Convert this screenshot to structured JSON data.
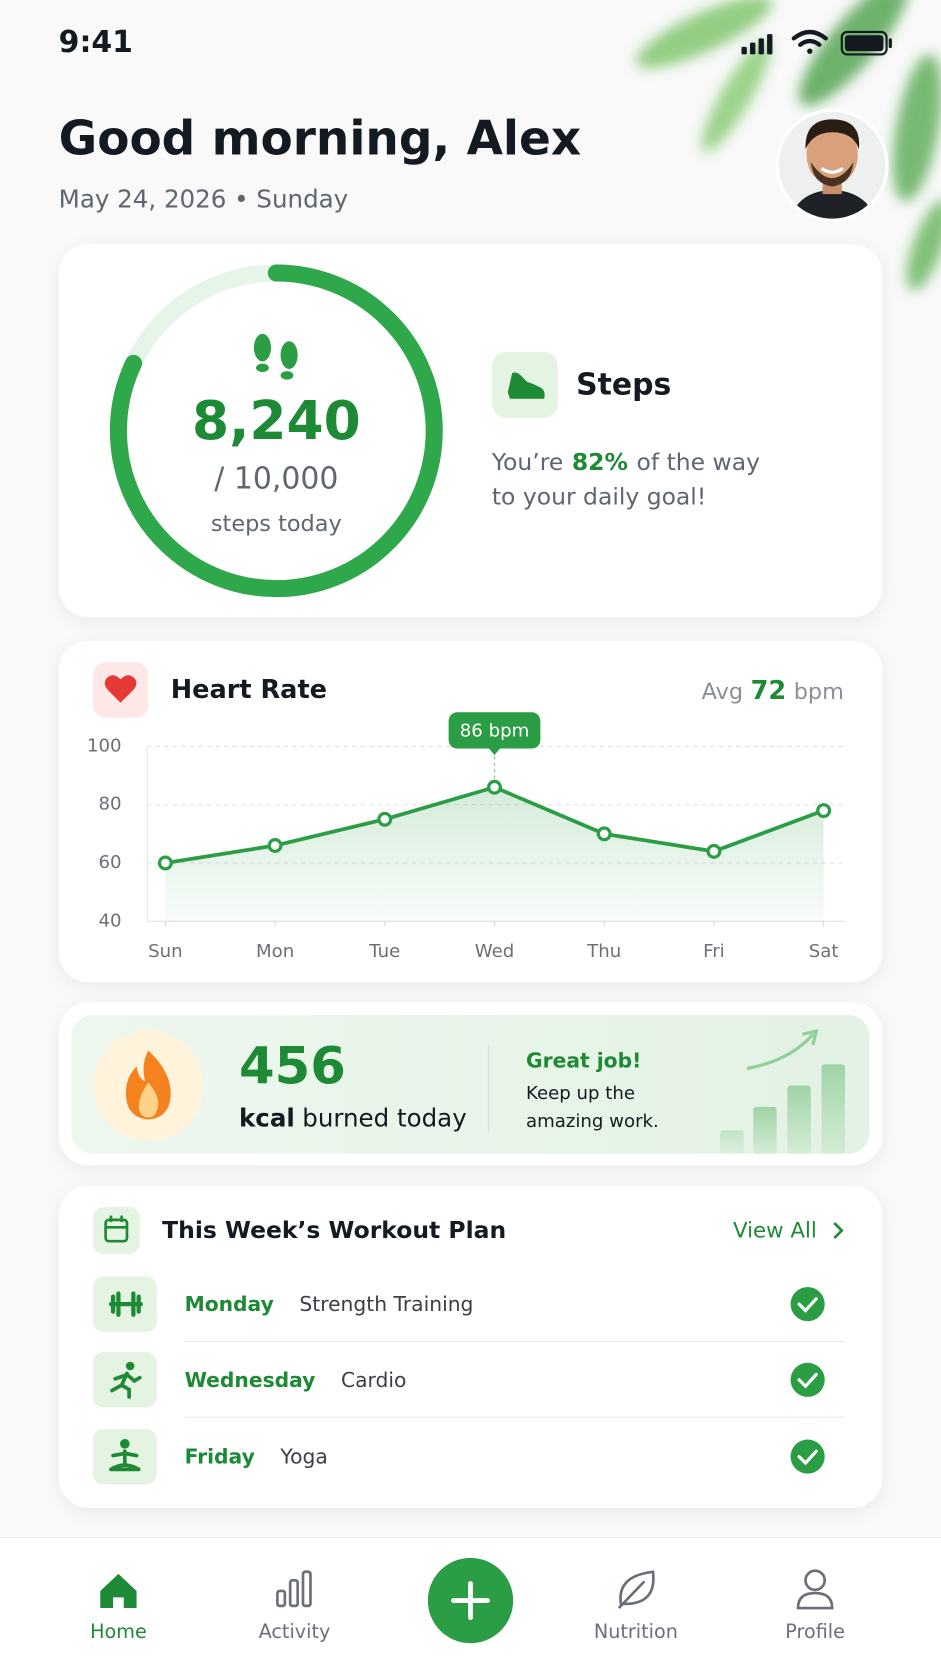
{
  "status_bar": {
    "time": "9:41"
  },
  "header": {
    "greeting": "Good morning, Alex",
    "date": "May 24, 2026 • Sunday"
  },
  "steps": {
    "count": "8,240",
    "goal": "/ 10,000",
    "unit": "steps today",
    "title": "Steps",
    "message": {
      "before": "You’re",
      "percent": {
        "value": 82,
        "label": "82%"
      },
      "after": "of the way",
      "line2": "to your daily goal!"
    }
  },
  "heart_rate": {
    "title": "Heart Rate",
    "avg_prefix": "Avg",
    "avg": 72,
    "avg_unit": "bpm",
    "chart": {
      "type": "line",
      "categories": [
        "Sun",
        "Mon",
        "Tue",
        "Wed",
        "Thu",
        "Fri",
        "Sat"
      ],
      "values": [
        60,
        66,
        75,
        86,
        70,
        64,
        78
      ],
      "color": "#2a9d45",
      "ylim": [
        40,
        100
      ],
      "yticks": [
        40,
        60,
        80,
        100
      ],
      "grid": true,
      "tooltip": "86 bpm"
    }
  },
  "calories": {
    "value": 456,
    "unit": "kcal",
    "caption": "burned today",
    "praise": "Great job!",
    "message": [
      "Keep up the",
      "amazing work."
    ]
  },
  "workout_plan": {
    "title": "This Week’s Workout Plan",
    "link": "View All",
    "items": [
      {
        "day": "Monday",
        "activity": "Strength Training"
      },
      {
        "day": "Wednesday",
        "activity": "Cardio"
      },
      {
        "day": "Friday",
        "activity": "Yoga"
      }
    ]
  },
  "nav": {
    "items": [
      "Home",
      "Activity",
      "Nutrition",
      "Profile"
    ]
  }
}
